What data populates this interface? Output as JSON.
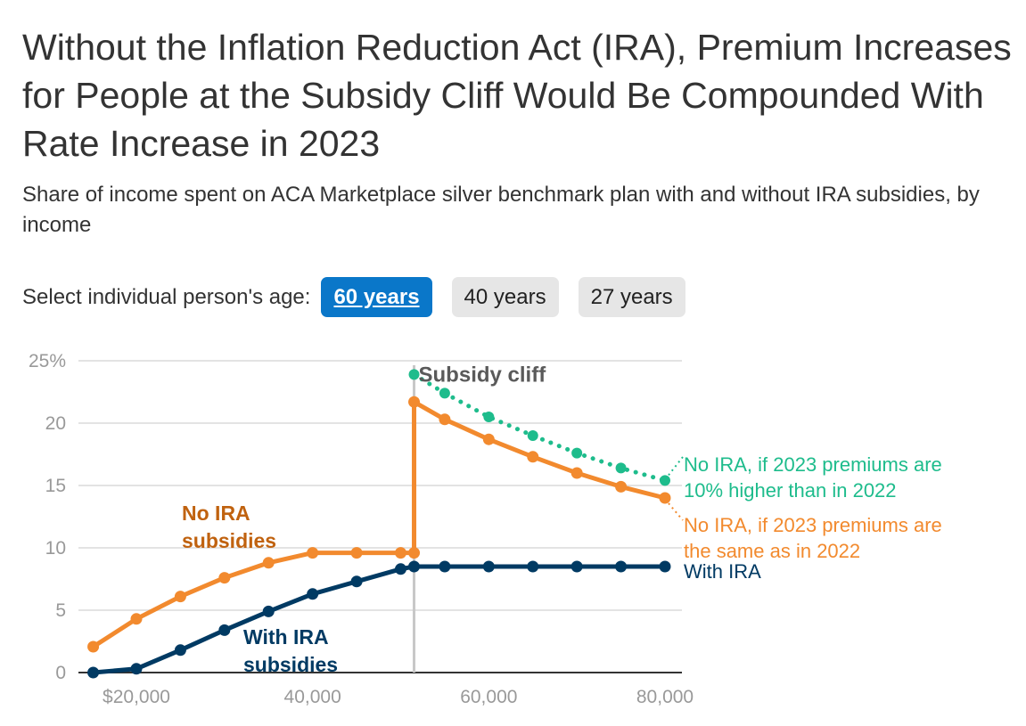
{
  "title": "Without the Inflation Reduction Act (IRA), Premium Increases for People at the Subsidy Cliff Would Be Compounded With Rate Increase in 2023",
  "subtitle": "Share of income spent on ACA Marketplace silver benchmark plan with and without IRA subsidies, by income",
  "age_selector": {
    "label": "Select individual person's age:",
    "options": [
      {
        "label": "60 years",
        "active": true
      },
      {
        "label": "40 years",
        "active": false
      },
      {
        "label": "27 years",
        "active": false
      }
    ]
  },
  "colors": {
    "with_ira": "#003a63",
    "no_ira": "#f28a2e",
    "no_ira_label": "#c0620f",
    "no_ira_10pct": "#1ebc8c",
    "cliff_line": "#c8c8c8",
    "cliff_label": "#5a5a5a",
    "active_button": "#0a77c9"
  },
  "chart_data": {
    "type": "line",
    "title": "",
    "xlabel": "",
    "ylabel": "",
    "xlim": [
      14000,
      82000
    ],
    "ylim": [
      0,
      25
    ],
    "grid": true,
    "y_ticks": [
      {
        "value": 0,
        "label": "0"
      },
      {
        "value": 5,
        "label": "5"
      },
      {
        "value": 10,
        "label": "10"
      },
      {
        "value": 15,
        "label": "15"
      },
      {
        "value": 20,
        "label": "20"
      },
      {
        "value": 25,
        "label": "25%"
      }
    ],
    "x_ticks": [
      {
        "value": 20000,
        "label": "$20,000"
      },
      {
        "value": 40000,
        "label": "40,000"
      },
      {
        "value": 60000,
        "label": "60,000"
      },
      {
        "value": 80000,
        "label": "80,000"
      }
    ],
    "subsidy_cliff": {
      "x": 51520,
      "label": "Subsidy cliff"
    },
    "series": [
      {
        "name": "No IRA, if 2023 premiums are 10% higher than in 2022",
        "key": "no_ira_10pct",
        "style": "dotted",
        "x": [
          51520,
          55000,
          60000,
          65000,
          70000,
          75000,
          80000
        ],
        "values": [
          23.9,
          22.4,
          20.5,
          19.0,
          17.6,
          16.4,
          15.4
        ]
      },
      {
        "name": "No IRA, if 2023 premiums are the same as in 2022",
        "key": "no_ira",
        "style": "solid",
        "x": [
          15100,
          20000,
          25000,
          30000,
          35000,
          40000,
          45000,
          50000,
          51520,
          51520,
          55000,
          60000,
          65000,
          70000,
          75000,
          80000
        ],
        "values": [
          2.07,
          4.3,
          6.1,
          7.6,
          8.8,
          9.6,
          9.6,
          9.6,
          9.6,
          21.7,
          20.3,
          18.7,
          17.3,
          16.0,
          14.9,
          14.0
        ]
      },
      {
        "name": "With IRA",
        "key": "with_ira",
        "style": "solid",
        "x": [
          15100,
          20000,
          25000,
          30000,
          35000,
          40000,
          45000,
          50000,
          51520,
          55000,
          60000,
          65000,
          70000,
          75000,
          80000
        ],
        "values": [
          0,
          0.3,
          1.8,
          3.4,
          4.9,
          6.3,
          7.3,
          8.3,
          8.5,
          8.5,
          8.5,
          8.5,
          8.5,
          8.5,
          8.5
        ]
      }
    ],
    "annotations": [
      {
        "key": "no_ira_label",
        "lines": [
          "No IRA",
          "subsidies"
        ]
      },
      {
        "key": "with_ira_label",
        "lines": [
          "With IRA",
          "subsidies"
        ]
      }
    ],
    "end_labels": [
      {
        "key": "no_ira_10pct",
        "lines": [
          "No IRA, if 2023 premiums are",
          "10% higher than in 2022"
        ]
      },
      {
        "key": "no_ira",
        "lines": [
          "No IRA, if 2023 premiums are",
          "the same as in 2022"
        ]
      },
      {
        "key": "with_ira",
        "lines": [
          "With IRA"
        ]
      }
    ]
  }
}
